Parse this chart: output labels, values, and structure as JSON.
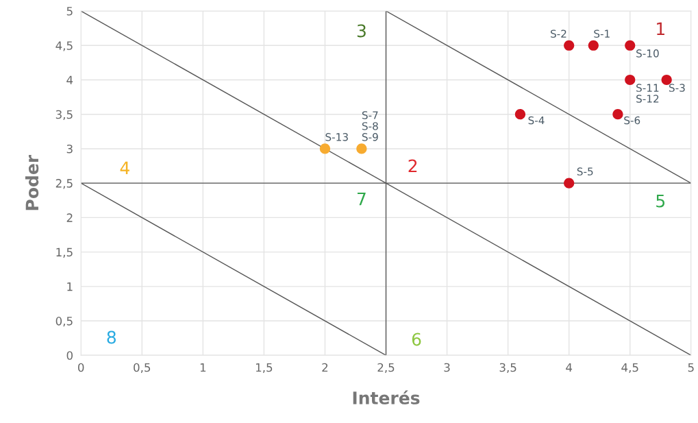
{
  "chart_data": {
    "type": "scatter",
    "xlabel": "Interés",
    "ylabel": "Poder",
    "xlim": [
      0,
      5
    ],
    "ylim": [
      0,
      5
    ],
    "xticks": [
      0,
      {
        "value": 0.5,
        "label": "0,5"
      },
      1,
      {
        "value": 1.5,
        "label": "1,5"
      },
      2,
      {
        "value": 2.5,
        "label": "2,5"
      },
      3,
      {
        "value": 3.5,
        "label": "3,5"
      },
      4,
      {
        "value": 4.5,
        "label": "4,5"
      },
      5
    ],
    "yticks": [
      0,
      {
        "value": 0.5,
        "label": "0,5"
      },
      1,
      {
        "value": 1.5,
        "label": "1,5"
      },
      2,
      {
        "value": 2.5,
        "label": "2,5"
      },
      3,
      {
        "value": 3.5,
        "label": "3,5"
      },
      4,
      {
        "value": 4.5,
        "label": "4,5"
      },
      5
    ],
    "grid": true,
    "series": [
      {
        "type": "line",
        "marker": "none",
        "color": "#555555",
        "x": [
          0,
          5
        ],
        "values": [
          5,
          0
        ]
      },
      {
        "type": "line",
        "marker": "none",
        "color": "#555555",
        "x": [
          2.5,
          5
        ],
        "values": [
          5,
          2.5
        ]
      },
      {
        "type": "line",
        "marker": "none",
        "color": "#555555",
        "x": [
          0,
          2.5
        ],
        "values": [
          2.5,
          0
        ]
      },
      {
        "type": "line",
        "marker": "none",
        "color": "#555555",
        "x": [
          2.5,
          2.5
        ],
        "values": [
          0,
          5
        ]
      },
      {
        "type": "line",
        "marker": "none",
        "color": "#555555",
        "x": [
          0,
          5
        ],
        "values": [
          2.5,
          2.5
        ]
      },
      {
        "marker": "circle",
        "color": "#d0121f",
        "x": [
          4.2,
          4,
          4.5,
          4.5,
          4.8,
          4.4,
          3.6,
          4
        ],
        "values": [
          4.5,
          4.5,
          4.5,
          4,
          4,
          3.5,
          3.5,
          2.5
        ],
        "value_labels": [
          "S-1",
          "S-2",
          "S-10",
          "S-11\nS-12",
          "S-3",
          "S-6",
          "S-4",
          "S-5"
        ]
      },
      {
        "marker": "circle",
        "color": "#f7ab30",
        "x": [
          2,
          2.3
        ],
        "values": [
          3,
          3
        ],
        "value_labels": [
          "S-13",
          "S-7\nS-8\nS-9"
        ]
      }
    ],
    "annotations": [
      "1",
      "2",
      "3",
      "4",
      "5",
      "6",
      "7",
      "8"
    ]
  }
}
